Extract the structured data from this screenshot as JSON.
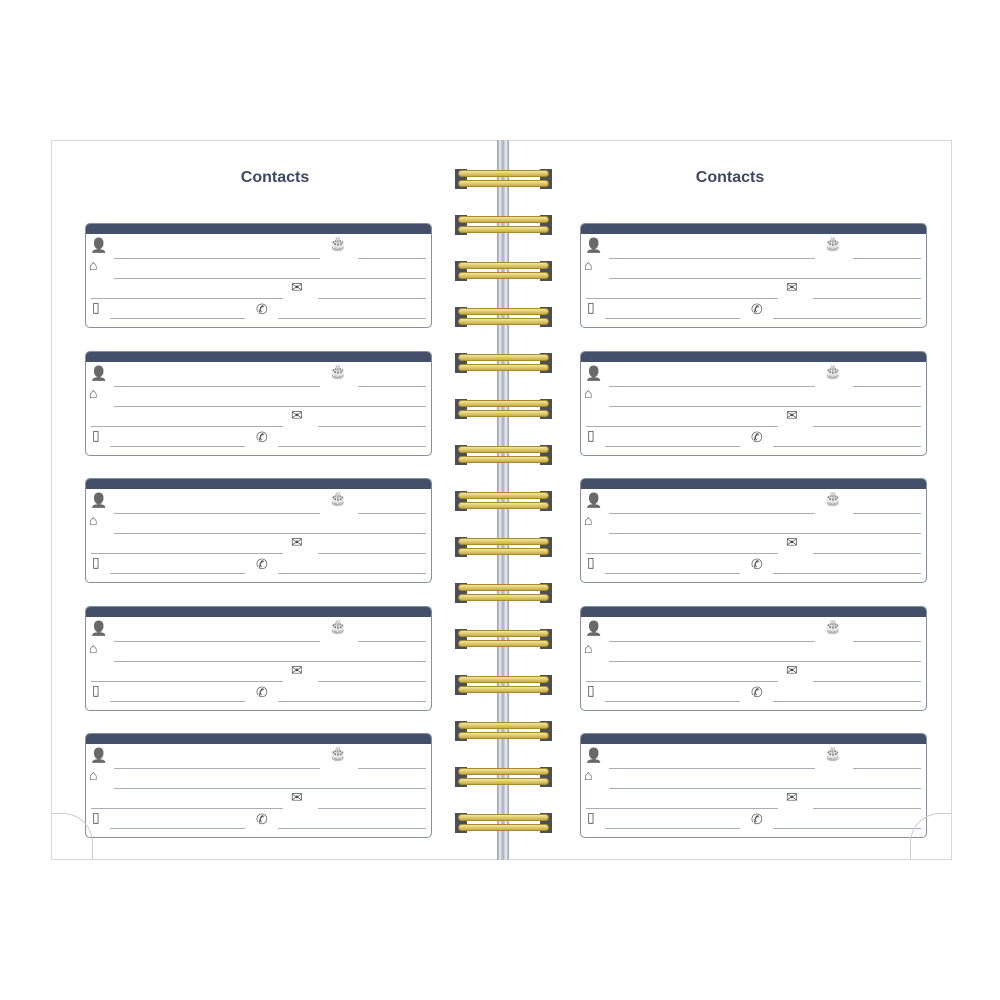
{
  "left_page": {
    "title": "Contacts"
  },
  "right_page": {
    "title": "Contacts"
  },
  "cards_per_page": 5,
  "ring_count": 15,
  "card_icons": [
    "person-icon",
    "birthday-cake-icon",
    "home-icon",
    "envelope-icon",
    "mobile-phone-icon",
    "telephone-icon"
  ],
  "colors": {
    "header_bar": "#444f6a",
    "title": "#3e4862",
    "line": "#a9adbb",
    "ring": "#d9c163"
  }
}
